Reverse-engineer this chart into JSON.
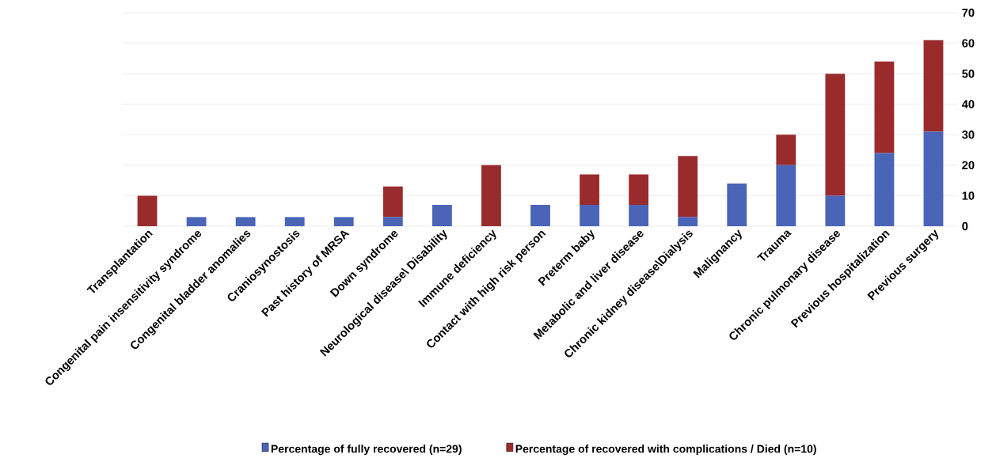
{
  "chart_data": {
    "type": "bar",
    "stacked": true,
    "categories": [
      "Transplantation",
      "Congenital pain insensitivity syndrome",
      "Congenital bladder anomalies",
      "Craniosynostosis",
      "Past history of MRSA",
      "Down syndrome",
      "Neurological disease\\ Disability",
      "Immune deficiency",
      "Contact with high risk person",
      "Preterm baby",
      "Metabolic and liver disease",
      "Chronic kidney disease\\Dialysis",
      "Malignancy",
      "Trauma",
      "Chronic pulmonary disease",
      "Previous hospitalization",
      "Previous surgery"
    ],
    "series": [
      {
        "name": "Percentage of fully recovered (n=29)",
        "color": "#4a64b8",
        "values": [
          0,
          3,
          3,
          3,
          3,
          3,
          7,
          0,
          7,
          7,
          7,
          3,
          14,
          20,
          10,
          24,
          31
        ]
      },
      {
        "name": "Percentage of recovered with complications / Died (n=10)",
        "color": "#9a2b2d",
        "values": [
          10,
          0,
          0,
          0,
          0,
          10,
          0,
          20,
          0,
          10,
          10,
          20,
          0,
          10,
          40,
          30,
          30
        ]
      }
    ],
    "ylim": [
      0,
      70
    ],
    "yticks": [
      0,
      10,
      20,
      30,
      40,
      50,
      60,
      70
    ],
    "grid": "y",
    "legend": "bottom"
  }
}
